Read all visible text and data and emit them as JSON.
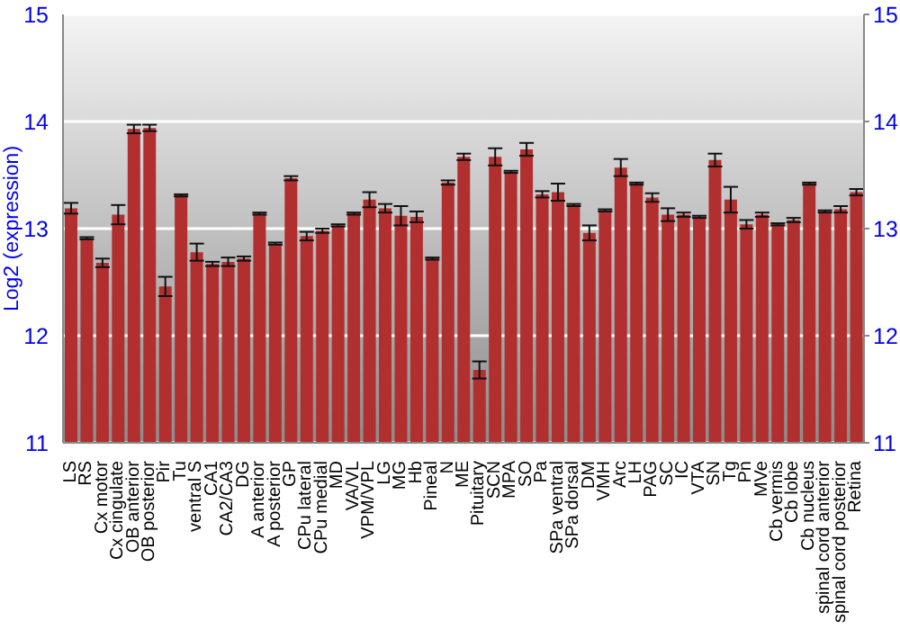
{
  "chart_data": {
    "type": "bar",
    "ylabel": "Log2 (expression)",
    "categories": [
      "LS",
      "RS",
      "Cx motor",
      "Cx cingulate",
      "OB anterior",
      "OB posterior",
      "Pir",
      "Tu",
      "ventral S",
      "CA1",
      "CA2/CA3",
      "DG",
      "A anterior",
      "A posterior",
      "GP",
      "CPu lateral",
      "CPu medial",
      "MD",
      "VA/VL",
      "VPM/VPL",
      "LG",
      "MG",
      "Hb",
      "Pineal",
      "N",
      "ME",
      "Pituitary",
      "SCN",
      "MPA",
      "SO",
      "Pa",
      "SPa ventral",
      "SPa dorsal",
      "DM",
      "VMH",
      "Arc",
      "LH",
      "PAG",
      "SC",
      "IC",
      "VTA",
      "SN",
      "Tg",
      "Pn",
      "MVe",
      "Cb vermis",
      "Cb lobe",
      "Cb nucleus",
      "spinal cord anterior",
      "spinal cord posterior",
      "Retina"
    ],
    "values": [
      13.19,
      12.91,
      12.68,
      13.13,
      13.93,
      13.94,
      12.46,
      13.31,
      12.78,
      12.67,
      12.69,
      12.72,
      13.14,
      12.86,
      13.47,
      12.93,
      12.98,
      13.03,
      13.14,
      13.27,
      13.19,
      13.12,
      13.11,
      12.72,
      13.43,
      13.67,
      11.68,
      13.67,
      13.53,
      13.74,
      13.32,
      13.34,
      13.22,
      12.96,
      13.17,
      13.57,
      13.42,
      13.29,
      13.13,
      13.13,
      13.11,
      13.64,
      13.27,
      13.04,
      13.13,
      13.04,
      13.08,
      13.42,
      13.16,
      13.18,
      13.34
    ],
    "errors": [
      0.05,
      0.01,
      0.04,
      0.09,
      0.04,
      0.03,
      0.09,
      0.01,
      0.08,
      0.02,
      0.04,
      0.02,
      0.01,
      0.01,
      0.02,
      0.04,
      0.02,
      0.01,
      0.01,
      0.07,
      0.04,
      0.09,
      0.05,
      0.01,
      0.02,
      0.03,
      0.08,
      0.08,
      0.01,
      0.06,
      0.03,
      0.08,
      0.01,
      0.07,
      0.01,
      0.08,
      0.01,
      0.04,
      0.06,
      0.02,
      0.01,
      0.06,
      0.12,
      0.04,
      0.02,
      0.01,
      0.02,
      0.01,
      0.01,
      0.03,
      0.03
    ],
    "color": "#b22f2f",
    "ylim": [
      11,
      15
    ],
    "yticks": [
      11,
      12,
      13,
      14,
      15
    ],
    "y2lim": [
      11,
      15
    ],
    "y2ticks": [
      11,
      12,
      13,
      14,
      15
    ],
    "grid": "y"
  }
}
